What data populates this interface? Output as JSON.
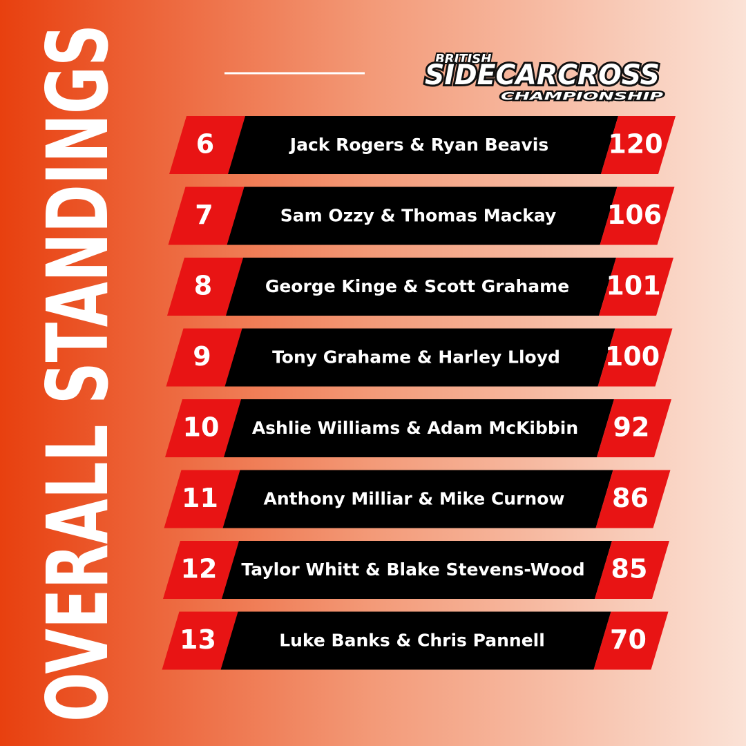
{
  "title": "OVERALL STANDINGS",
  "logo": {
    "top": "BRITISH",
    "main": "SIDECARCROSS",
    "bottom": "CHAMPIONSHIP"
  },
  "standings": [
    {
      "position": 6,
      "names": "Jack Rogers & Ryan Beavis",
      "points": 120
    },
    {
      "position": 7,
      "names": "Sam Ozzy & Thomas Mackay",
      "points": 106
    },
    {
      "position": 8,
      "names": "George Kinge & Scott Grahame",
      "points": 101
    },
    {
      "position": 9,
      "names": "Tony Grahame & Harley Lloyd",
      "points": 100
    },
    {
      "position": 10,
      "names": "Ashlie Williams & Adam McKibbin",
      "points": 92
    },
    {
      "position": 11,
      "names": "Anthony Milliar & Mike Curnow",
      "points": 86
    },
    {
      "position": 12,
      "names": "Taylor Whitt & Blake Stevens-Wood",
      "points": 85
    },
    {
      "position": 13,
      "names": "Luke Banks & Chris Pannell",
      "points": 70
    }
  ]
}
